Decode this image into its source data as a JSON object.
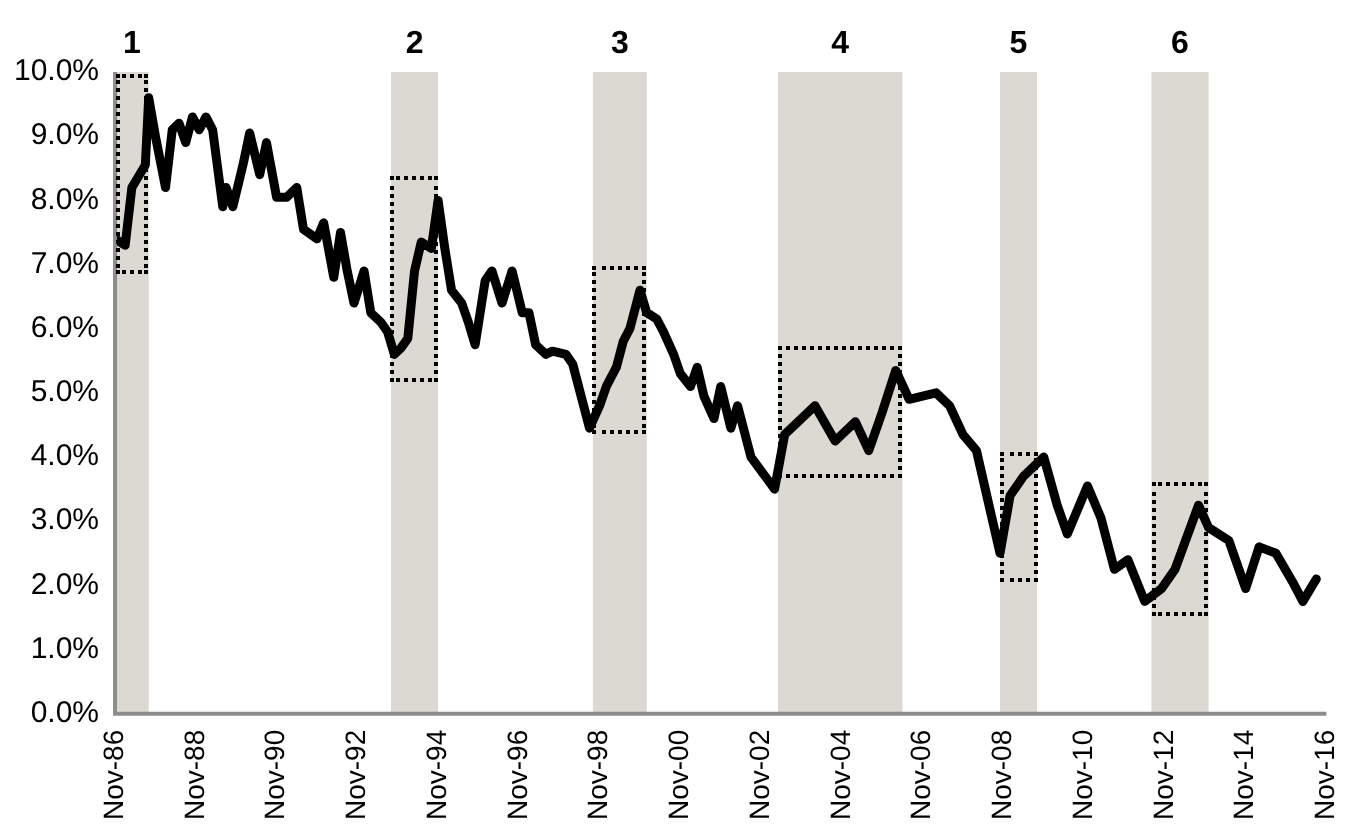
{
  "chart_data": {
    "type": "line",
    "x": [
      "1986-11",
      "1987-02",
      "1987-04",
      "1987-08",
      "1987-09",
      "1987-11",
      "1988-02",
      "1988-04",
      "1988-06",
      "1988-08",
      "1988-10",
      "1988-12",
      "1989-02",
      "1989-04",
      "1989-07",
      "1989-08",
      "1989-10",
      "1990-01",
      "1990-03",
      "1990-06",
      "1990-08",
      "1990-11",
      "1991-02",
      "1991-05",
      "1991-07",
      "1991-11",
      "1992-01",
      "1992-04",
      "1992-06",
      "1992-08",
      "1992-10",
      "1993-01",
      "1993-03",
      "1993-06",
      "1993-08",
      "1993-10",
      "1993-12",
      "1994-02",
      "1994-04",
      "1994-06",
      "1994-09",
      "1994-11",
      "1995-01",
      "1995-03",
      "1995-06",
      "1995-08",
      "1995-10",
      "1996-01",
      "1996-03",
      "1996-06",
      "1996-09",
      "1996-12",
      "1997-02",
      "1997-04",
      "1997-07",
      "1997-09",
      "1998-01",
      "1998-03",
      "1998-08",
      "1998-11",
      "1999-01",
      "1999-04",
      "1999-06",
      "1999-08",
      "1999-11",
      "2000-01",
      "2000-04",
      "2000-06",
      "2000-09",
      "2000-11",
      "2001-02",
      "2001-04",
      "2001-06",
      "2001-09",
      "2001-11",
      "2002-02",
      "2002-04",
      "2002-08",
      "2003-03",
      "2003-06",
      "2004-03",
      "2004-09",
      "2005-03",
      "2005-07",
      "2005-11",
      "2006-03",
      "2006-07",
      "2007-03",
      "2007-07",
      "2007-11",
      "2008-03",
      "2008-10",
      "2009-01",
      "2009-05",
      "2009-11",
      "2010-03",
      "2010-06",
      "2010-12",
      "2011-04",
      "2011-08",
      "2011-12",
      "2012-05",
      "2012-10",
      "2013-02",
      "2013-09",
      "2013-12",
      "2014-06",
      "2014-11",
      "2015-03",
      "2015-08",
      "2016-01",
      "2016-04",
      "2016-08"
    ],
    "series": [
      {
        "color": "#000000",
        "values": [
          7.4,
          7.3,
          8.2,
          8.55,
          9.6,
          9.0,
          8.2,
          9.1,
          9.2,
          8.9,
          9.3,
          9.1,
          9.3,
          9.1,
          7.9,
          8.2,
          7.9,
          8.55,
          9.05,
          8.4,
          8.9,
          8.05,
          8.05,
          8.2,
          7.55,
          7.4,
          7.65,
          6.8,
          7.5,
          6.9,
          6.4,
          6.9,
          6.25,
          6.1,
          5.95,
          5.6,
          5.7,
          5.85,
          6.9,
          7.35,
          7.25,
          8.0,
          7.25,
          6.6,
          6.4,
          6.1,
          5.75,
          6.75,
          6.9,
          6.4,
          6.9,
          6.25,
          6.25,
          5.75,
          5.6,
          5.65,
          5.6,
          5.45,
          4.45,
          4.8,
          5.1,
          5.4,
          5.8,
          6.0,
          6.6,
          6.25,
          6.15,
          5.95,
          5.6,
          5.3,
          5.1,
          5.4,
          4.95,
          4.6,
          5.1,
          4.45,
          4.8,
          4.0,
          3.5,
          4.35,
          4.8,
          4.25,
          4.55,
          4.1,
          4.7,
          5.35,
          4.9,
          5.0,
          4.8,
          4.35,
          4.1,
          2.5,
          3.4,
          3.7,
          4.0,
          3.25,
          2.8,
          3.55,
          3.05,
          2.25,
          2.4,
          1.75,
          1.95,
          2.25,
          3.25,
          2.9,
          2.7,
          1.95,
          2.6,
          2.5,
          2.05,
          1.75,
          2.1
        ]
      }
    ],
    "xlim": [
      "1986-11",
      "2016-11"
    ],
    "xticks": [
      {
        "value": "1986-11",
        "label": "Nov-86"
      },
      {
        "value": "1988-11",
        "label": "Nov-88"
      },
      {
        "value": "1990-11",
        "label": "Nov-90"
      },
      {
        "value": "1992-11",
        "label": "Nov-92"
      },
      {
        "value": "1994-11",
        "label": "Nov-94"
      },
      {
        "value": "1996-11",
        "label": "Nov-96"
      },
      {
        "value": "1998-11",
        "label": "Nov-98"
      },
      {
        "value": "2000-11",
        "label": "Nov-00"
      },
      {
        "value": "2002-11",
        "label": "Nov-02"
      },
      {
        "value": "2004-11",
        "label": "Nov-04"
      },
      {
        "value": "2006-11",
        "label": "Nov-06"
      },
      {
        "value": "2008-11",
        "label": "Nov-08"
      },
      {
        "value": "2010-11",
        "label": "Nov-10"
      },
      {
        "value": "2012-11",
        "label": "Nov-12"
      },
      {
        "value": "2014-11",
        "label": "Nov-14"
      },
      {
        "value": "2016-11",
        "label": "Nov-16"
      }
    ],
    "ylim": [
      0,
      10
    ],
    "yticks": [
      {
        "value": 0,
        "label": "0.0%"
      },
      {
        "value": 1,
        "label": "1.0%"
      },
      {
        "value": 2,
        "label": "2.0%"
      },
      {
        "value": 3,
        "label": "3.0%"
      },
      {
        "value": 4,
        "label": "4.0%"
      },
      {
        "value": 5,
        "label": "5.0%"
      },
      {
        "value": 6,
        "label": "6.0%"
      },
      {
        "value": 7,
        "label": "7.0%"
      },
      {
        "value": 8,
        "label": "8.0%"
      },
      {
        "value": 9,
        "label": "9.0%"
      },
      {
        "value": 10,
        "label": "10.0%"
      }
    ],
    "bands": [
      {
        "axis": "x",
        "from": "1986-11",
        "to": "1987-09",
        "label": "1",
        "color": "#dcd8d2"
      },
      {
        "axis": "x",
        "from": "1993-09",
        "to": "1994-11",
        "label": "2",
        "color": "#dcd8d2"
      },
      {
        "axis": "x",
        "from": "1998-09",
        "to": "2000-01",
        "label": "3",
        "color": "#dcd8d2"
      },
      {
        "axis": "x",
        "from": "2003-04",
        "to": "2006-05",
        "label": "4",
        "color": "#dcd8d2"
      },
      {
        "axis": "x",
        "from": "2008-10",
        "to": "2009-09",
        "label": "5",
        "color": "#dcd8d2"
      },
      {
        "axis": "x",
        "from": "2012-07",
        "to": "2013-12",
        "label": "6",
        "color": "#dcd8d2"
      }
    ],
    "grid": false,
    "legend": false,
    "marker": "none",
    "line_style": "solid"
  }
}
